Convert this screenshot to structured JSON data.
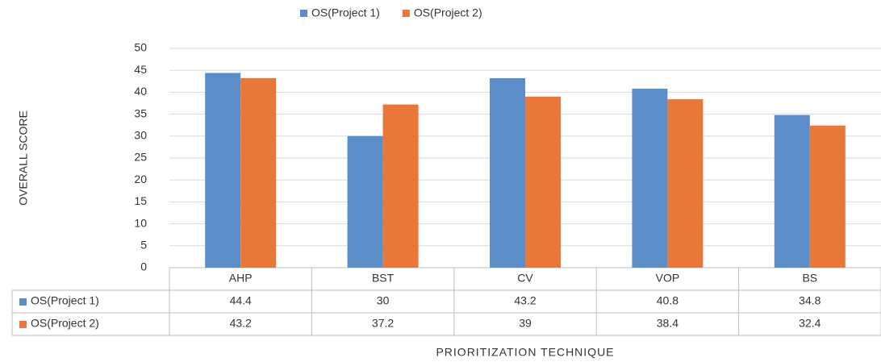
{
  "chart_data": {
    "type": "bar",
    "y_label": "OVERALL SCORE",
    "x_label": "PRIORITIZATION TECHNIQUE",
    "categories": [
      "AHP",
      "BST",
      "CV",
      "VOP",
      "BS"
    ],
    "series": [
      {
        "name": "OS(Project 1)",
        "color": "#5b8ec8",
        "values": [
          44.4,
          30,
          43.2,
          40.8,
          34.8
        ]
      },
      {
        "name": "OS(Project 2)",
        "color": "#e8773a",
        "values": [
          43.2,
          37.2,
          39,
          38.4,
          32.4
        ]
      }
    ],
    "ylim": [
      0,
      50
    ],
    "yticks": [
      0,
      5,
      10,
      15,
      20,
      25,
      30,
      35,
      40,
      45,
      50
    ],
    "grid": true,
    "legend": "top"
  }
}
